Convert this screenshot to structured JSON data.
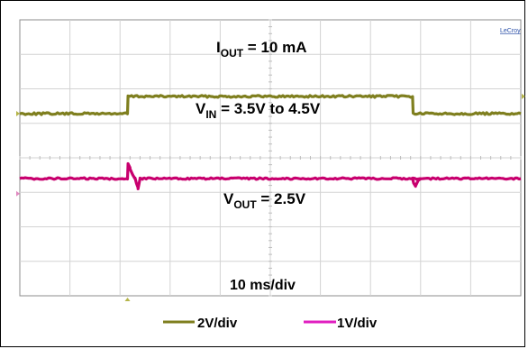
{
  "chart_data": {
    "type": "line",
    "xlabel": "10 ms/div",
    "brand": "LeCroy",
    "x_divisions": 10,
    "y_divisions": 8,
    "xlim": [
      0,
      100
    ],
    "annotations": {
      "iout": {
        "base": "I",
        "sub": "OUT",
        "rest": " = 10 mA"
      },
      "vin": {
        "base": "V",
        "sub": "IN",
        "rest": " = 3.5V to 4.5V"
      },
      "vout": {
        "base": "V",
        "sub": "OUT",
        "rest": " = 2.5V"
      }
    },
    "series": [
      {
        "name": "2V/div",
        "color": "#7f7f1f",
        "x": [
          0,
          21.5,
          21.6,
          78.4,
          78.5,
          100
        ],
        "y": [
          3.5,
          3.5,
          4.5,
          4.5,
          3.5,
          3.5
        ]
      },
      {
        "name": "1V/div",
        "color": "#c8006e",
        "x": [
          0,
          21.5,
          21.6,
          22.0,
          22.5,
          23.0,
          23.6,
          24.0,
          24.5,
          100
        ],
        "y": [
          2.5,
          2.5,
          3.25,
          3.05,
          2.75,
          2.5,
          2.0,
          2.5,
          2.5,
          2.5
        ],
        "x2": [
          78.4,
          78.6,
          79.0,
          79.5,
          80.0
        ],
        "y2": [
          2.5,
          2.25,
          2.1,
          2.4,
          2.5
        ]
      }
    ],
    "legend": [
      {
        "label": "2V/div",
        "color": "#7f7f1f"
      },
      {
        "label": "1V/div",
        "color": "#e020c0"
      }
    ]
  }
}
